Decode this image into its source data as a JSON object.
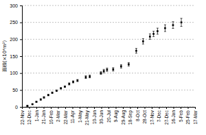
{
  "chart_data": {
    "type": "scatter",
    "y_label": "面積(×10⁴m²)",
    "x": [
      15,
      29,
      40,
      52,
      61,
      73,
      84,
      96,
      108,
      119,
      131,
      142,
      154,
      177,
      188,
      219,
      227,
      236,
      253,
      275,
      296,
      317,
      336,
      355,
      365,
      376,
      397,
      419,
      442
    ],
    "values": [
      3,
      8,
      15,
      22,
      28,
      35,
      42,
      48,
      55,
      60,
      68,
      74,
      78,
      88,
      90,
      100,
      106,
      110,
      111,
      120,
      126,
      166,
      194,
      208,
      216,
      224,
      233,
      242,
      250
    ],
    "errors": [
      1,
      1,
      1,
      2,
      2,
      2,
      2,
      2,
      2,
      2,
      3,
      3,
      3,
      4,
      4,
      4,
      5,
      5,
      5,
      5,
      5,
      7,
      8,
      8,
      8,
      9,
      10,
      10,
      12
    ],
    "color": "#000000",
    "marker": "square",
    "xlim": [
      0,
      480
    ],
    "xticks": [
      {
        "value": 0,
        "label": "22-Nov"
      },
      {
        "value": 20,
        "label": "12-Dec"
      },
      {
        "value": 40,
        "label": "1-Jan"
      },
      {
        "value": 60,
        "label": "21-Jan"
      },
      {
        "value": 80,
        "label": "10-Feb"
      },
      {
        "value": 100,
        "label": "2-Mar"
      },
      {
        "value": 120,
        "label": "22-Mar"
      },
      {
        "value": 140,
        "label": "11-Apr"
      },
      {
        "value": 160,
        "label": "1-May"
      },
      {
        "value": 180,
        "label": "21-May"
      },
      {
        "value": 200,
        "label": "10-Jun"
      },
      {
        "value": 220,
        "label": "30-Jun"
      },
      {
        "value": 240,
        "label": "20-Jul"
      },
      {
        "value": 260,
        "label": "9-Aug"
      },
      {
        "value": 280,
        "label": "29-Aug"
      },
      {
        "value": 300,
        "label": "18-Sep"
      },
      {
        "value": 320,
        "label": "8-Oct"
      },
      {
        "value": 340,
        "label": "28-Oct"
      },
      {
        "value": 360,
        "label": "17-Nov"
      },
      {
        "value": 380,
        "label": "7-Dec"
      },
      {
        "value": 400,
        "label": "27-Dec"
      },
      {
        "value": 420,
        "label": "16-Jan"
      },
      {
        "value": 440,
        "label": "5-Feb"
      },
      {
        "value": 460,
        "label": "25-Feb"
      },
      {
        "value": 480,
        "label": "17-Mar"
      }
    ],
    "ylim": [
      0,
      300
    ],
    "yticks": [
      0,
      50,
      100,
      150,
      200,
      250,
      300
    ],
    "grid": true
  }
}
